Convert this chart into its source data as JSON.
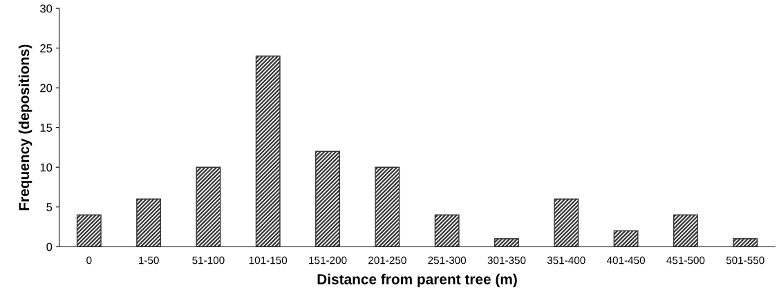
{
  "chart_data": {
    "type": "bar",
    "xlabel": "Distance from parent tree (m)",
    "ylabel": "Frequency (depositions)",
    "categories": [
      "0",
      "1-50",
      "51-100",
      "101-150",
      "151-200",
      "201-250",
      "251-300",
      "301-350",
      "351-400",
      "401-450",
      "451-500",
      "501-550"
    ],
    "values": [
      4,
      6,
      10,
      24,
      12,
      10,
      4,
      1,
      6,
      2,
      4,
      1
    ],
    "color": "#333333",
    "ylim": [
      0,
      30
    ],
    "yticks": [
      0,
      5,
      10,
      15,
      20,
      25,
      30
    ],
    "grid": false,
    "legend": false
  }
}
